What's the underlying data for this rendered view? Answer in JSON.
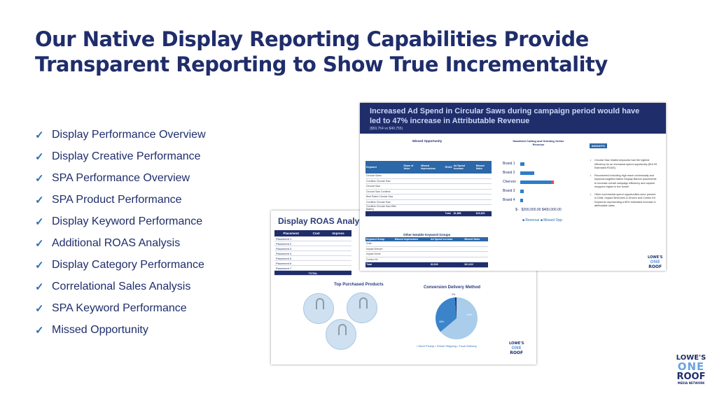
{
  "slide": {
    "title_line1": "Our Native Display Reporting Capabilities Provide",
    "title_line2": "Transparent Reporting to Show True Incrementality",
    "checklist": [
      "Display Performance Overview",
      "Display Creative Performance",
      "SPA Performance Overview",
      "SPA Product Performance",
      "Display Keyword Performance",
      "Additional ROAS Analysis",
      "Display Category Performance",
      "Correlational Sales Analysis",
      "SPA Keyword Performance",
      "Missed Opportunity"
    ],
    "check_icon": "✓"
  },
  "back_report": {
    "title": "Display ROAS Analysis",
    "columns": [
      "Placement",
      "Cost",
      "Impress"
    ],
    "rows": [
      "Placement 1",
      "Placement 2",
      "Placement 3",
      "Placement 4",
      "Placement 5",
      "Placement 6",
      "Placement 7"
    ],
    "total_label": "TOTAL",
    "products_title": "Top Purchased Products",
    "conversion_title": "Conversion Delivery Method",
    "pie_percents": [
      "2%",
      "35%",
      "64%"
    ],
    "legend": "• Store Pickup  • Parcel Shipping  • Truck Delivery",
    "logo_top": "LOWE'S",
    "logo_mid": "ONE",
    "logo_bottom": "ROOF"
  },
  "front_report": {
    "title": "Increased Ad Spend in Circular Saws during campaign period would have led to 47% increase in Attributable Revenue",
    "subtitle": "($59,754 vs $40,755)",
    "missed_title": "Missed Opportunity",
    "table_columns": [
      "Keyword",
      "Share of Voice",
      "Missed Impressions",
      "ROAS",
      "Ad Spend Increase",
      "Missed Sales"
    ],
    "table_rows": [
      [
        "Circular Saws",
        "",
        "",
        "",
        "",
        ""
      ],
      [
        "Cordless Circular Saw",
        "",
        "",
        "",
        "",
        ""
      ],
      [
        "Circular Saw",
        "",
        "",
        "",
        "",
        ""
      ],
      [
        "Circular Saw Cordless",
        "",
        "",
        "",
        "",
        ""
      ],
      [
        "Best Rated Circular Saw",
        "",
        "",
        "",
        "",
        ""
      ],
      [
        "Cordless Circular Saw",
        "",
        "",
        "",
        "",
        ""
      ],
      [
        "Cordless Circular Saw With Battery",
        "",
        "",
        "",
        "",
        ""
      ]
    ],
    "total_row": [
      "",
      "",
      "",
      "Total",
      "$1,888",
      "$18,629"
    ],
    "notable_title": "Other Notable Keyword Groups",
    "notable_columns": [
      "Keyword Group",
      "Missed Impressions",
      "Ad Spend Increase",
      "Missed Sales"
    ],
    "notable_rows": [
      [
        "Drills",
        "",
        "",
        ""
      ],
      [
        "Impact Wrench",
        "",
        "",
        ""
      ],
      [
        "Impact Driver",
        "",
        "",
        ""
      ],
      [
        "Combo Kit",
        "",
        "",
        ""
      ]
    ],
    "notable_total": [
      "Total",
      "",
      "$3,540",
      "$31,922"
    ],
    "chart_title": "Handheld Cutting and Grinding Online Revenue",
    "brands": [
      "Brand 1",
      "Brand 2",
      "Chervon",
      "Brand 3",
      "Brand 4"
    ],
    "axis_labels": [
      "$-",
      "$200,000.00",
      "$400,000.00"
    ],
    "legend": "■ Revenue   ■ Missed Opp",
    "insights_tag": "INSIGHTS",
    "insights": [
      "Circular Saw related keywords had the highest efficiency for an increased spend opportunity ($10.09 Estimated ROAS)",
      "Recommend including high reach contextually and keyword-targeted Native Display Banner placements to increase overall campaign efficiency and capture shoppers higher in the funnel",
      "Other incremental spend opportunities were present in Drills, Impact Wrenches & Drivers and Combo Kit Keywords representing a 89% estimated increase in attributable sales"
    ]
  },
  "brand": {
    "line1": "LOWE'S",
    "line2": "ONE",
    "line3": "ROOF",
    "line4": "MEDIA NETWORK"
  },
  "colors": {
    "navy": "#1f2d6b",
    "accent_blue": "#2c67a8",
    "check_blue": "#2d6fb8"
  }
}
